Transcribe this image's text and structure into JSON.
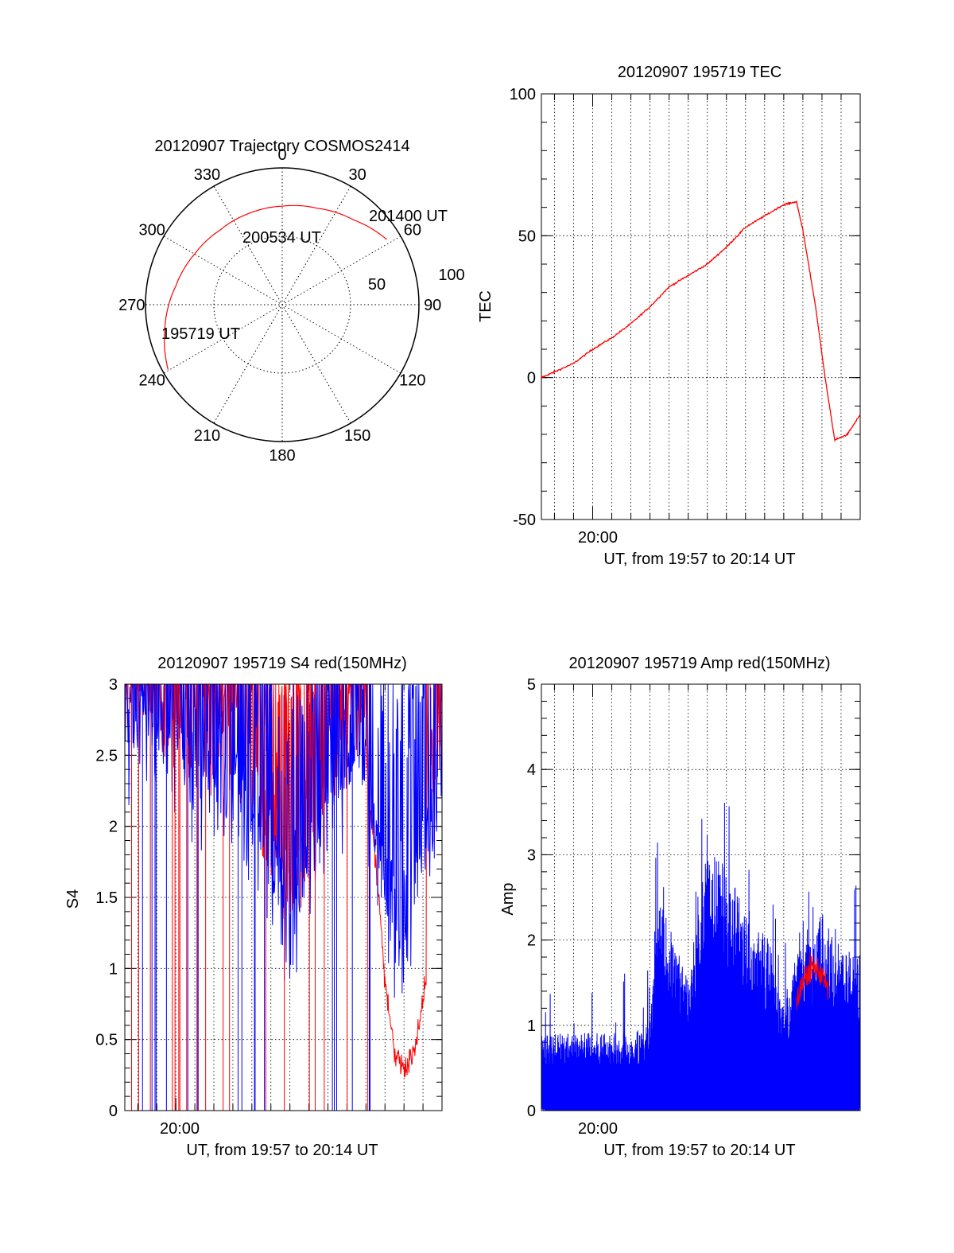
{
  "chart_data": [
    {
      "type": "polar",
      "title": "20120907 Trajectory COSMOS2414",
      "azimuth_labels": [
        "0",
        "30",
        "60",
        "90",
        "120",
        "150",
        "180",
        "210",
        "240",
        "270",
        "300",
        "330"
      ],
      "radial_labels": [
        "50",
        "100"
      ],
      "rlim": [
        0,
        100
      ],
      "grid": true,
      "series": [
        {
          "color": "#ff0000",
          "points": [
            [
              240.4,
              96
            ],
            [
              260,
              87
            ],
            [
              280,
              79
            ],
            [
              300,
              74
            ],
            [
              320,
              71
            ],
            [
              340,
              71
            ],
            [
              0,
              72
            ],
            [
              20,
              75
            ],
            [
              40,
              81
            ],
            [
              58,
              90
            ]
          ]
        }
      ],
      "annotations": [
        {
          "text": "195719 UT",
          "az": 240.4,
          "r": 96
        },
        {
          "text": "200534 UT",
          "az": 320,
          "r": 71
        },
        {
          "text": "201400 UT",
          "az": 58,
          "r": 90
        }
      ]
    },
    {
      "type": "line",
      "title": "20120907 195719 TEC",
      "ylabel": "TEC",
      "xlabel": "UT, from 19:57 to 20:14 UT",
      "xtick_label": "20:00",
      "xlim": [
        "19:57:19",
        "20:14:00"
      ],
      "ylim": [
        -50,
        100
      ],
      "yticks": [
        "100",
        "50",
        "0",
        "-50"
      ],
      "grid": true,
      "series": [
        {
          "color": "#ff0000",
          "points": [
            [
              "19:57:19",
              0
            ],
            [
              "19:58:00",
              2
            ],
            [
              "19:59:00",
              5
            ],
            [
              "20:00:00",
              10
            ],
            [
              "20:01:00",
              14
            ],
            [
              "20:02:00",
              19
            ],
            [
              "20:03:00",
              25
            ],
            [
              "20:04:00",
              32
            ],
            [
              "20:05:00",
              36
            ],
            [
              "20:06:00",
              40
            ],
            [
              "20:07:00",
              46
            ],
            [
              "20:08:00",
              53
            ],
            [
              "20:09:00",
              57
            ],
            [
              "20:10:00",
              61
            ],
            [
              "20:10:40",
              62
            ],
            [
              "20:11:00",
              52
            ],
            [
              "20:11:40",
              25
            ],
            [
              "20:12:10",
              0
            ],
            [
              "20:12:40",
              -22
            ],
            [
              "20:13:20",
              -20
            ],
            [
              "20:14:00",
              -13
            ]
          ]
        }
      ]
    },
    {
      "type": "line",
      "title": "20120907 195719 S4 red(150MHz)",
      "ylabel": "S4",
      "xlabel": "UT, from 19:57 to 20:14 UT",
      "xtick_label": "20:00",
      "xlim": [
        "19:57:19",
        "20:14:00"
      ],
      "ylim": [
        0,
        3
      ],
      "yticks": [
        "3",
        "2.5",
        "2",
        "1.5",
        "1",
        "0.5",
        "0"
      ],
      "grid": true,
      "series": [
        {
          "color": "#ff0000",
          "description": "red (150MHz)"
        },
        {
          "color": "#0000ff",
          "description": "blue"
        }
      ],
      "envelope_blue": [
        [
          "19:57:19",
          2.6
        ],
        [
          "19:58:00",
          2.8
        ],
        [
          "19:59:30",
          2.6
        ],
        [
          "20:01:00",
          2.5
        ],
        [
          "20:03:00",
          2.4
        ],
        [
          "20:05:00",
          1.7
        ],
        [
          "20:06:00",
          1.3
        ],
        [
          "20:07:00",
          1.8
        ],
        [
          "20:08:00",
          2.3
        ],
        [
          "20:09:00",
          2.5
        ],
        [
          "20:10:00",
          2.5
        ],
        [
          "20:11:00",
          1.6
        ],
        [
          "20:12:00",
          1.4
        ],
        [
          "20:13:00",
          1.9
        ],
        [
          "20:14:00",
          2.4
        ]
      ],
      "envelope_red": [
        [
          "20:10:00",
          2.5
        ],
        [
          "20:10:40",
          1.5
        ],
        [
          "20:11:00",
          0.9
        ],
        [
          "20:11:30",
          0.4
        ],
        [
          "20:12:10",
          0.3
        ],
        [
          "20:12:40",
          0.5
        ],
        [
          "20:13:10",
          0.9
        ]
      ]
    },
    {
      "type": "line",
      "title": "20120907 195719 Amp red(150MHz)",
      "ylabel": "Amp",
      "xlabel": "UT, from 19:57 to 20:14 UT",
      "xtick_label": "20:00",
      "xlim": [
        "19:57:19",
        "20:14:00"
      ],
      "ylim": [
        0,
        5
      ],
      "yticks": [
        "5",
        "4",
        "3",
        "2",
        "1",
        "0"
      ],
      "grid": true,
      "series": [
        {
          "color": "#0000ff",
          "description": "blue"
        },
        {
          "color": "#ff0000",
          "description": "red (150MHz)"
        }
      ],
      "envelope_blue": [
        [
          "19:57:19",
          0.7
        ],
        [
          "20:02:00",
          0.7
        ],
        [
          "20:03:00",
          0.8
        ],
        [
          "20:03:30",
          1.9
        ],
        [
          "20:05:00",
          1.2
        ],
        [
          "20:06:00",
          2.4
        ],
        [
          "20:07:00",
          2.2
        ],
        [
          "20:08:00",
          1.9
        ],
        [
          "20:09:00",
          1.7
        ],
        [
          "20:10:00",
          1.0
        ],
        [
          "20:11:00",
          1.6
        ],
        [
          "20:12:00",
          1.8
        ],
        [
          "20:13:00",
          1.5
        ],
        [
          "20:14:00",
          1.4
        ]
      ],
      "envelope_red": [
        [
          "20:10:40",
          1.3
        ],
        [
          "20:11:00",
          1.5
        ],
        [
          "20:11:30",
          1.7
        ],
        [
          "20:12:00",
          1.6
        ],
        [
          "20:12:20",
          1.4
        ]
      ]
    }
  ]
}
